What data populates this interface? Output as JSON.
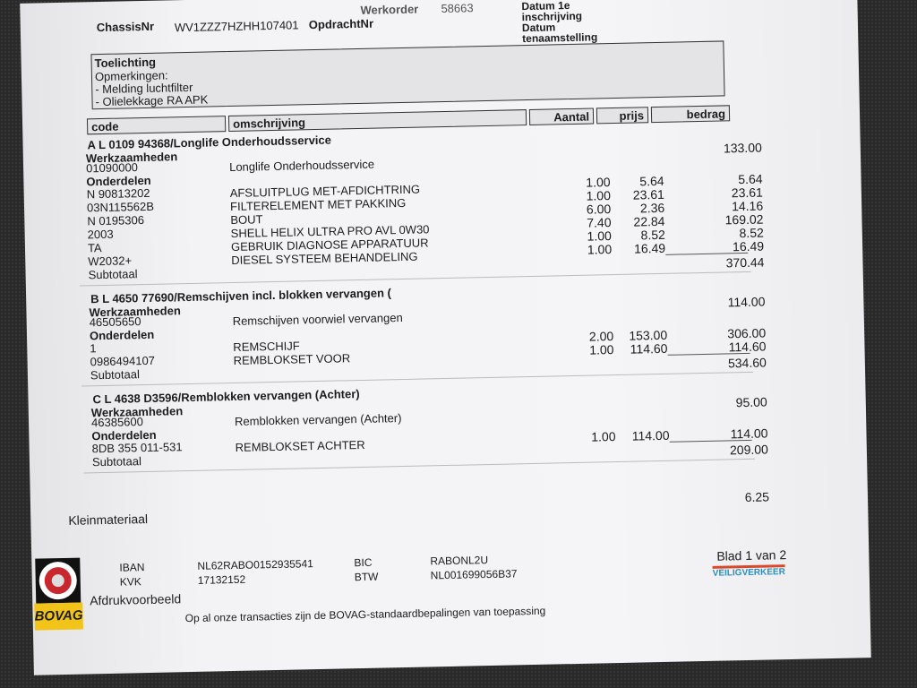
{
  "header": {
    "werkorder_label": "Werkorder",
    "werkorder_value": "58663",
    "chassis_label": "ChassisNr",
    "chassis_value": "WV1ZZZ7HZHH107401",
    "opdracht_label": "OpdrachtNr",
    "datum1_label": "Datum 1e",
    "datum1_label2": "inschrijving",
    "datum2_label": "Datum",
    "datum2_label2": "tenaamstelling"
  },
  "toelichting": {
    "title": "Toelichting",
    "lines": [
      "Opmerkingen:",
      "- Melding luchtfilter",
      "- Olielekkage RA APK"
    ]
  },
  "columns": {
    "code": "code",
    "omschrijving": "omschrijving",
    "aantal": "Aantal",
    "prijs": "prijs",
    "bedrag": "bedrag"
  },
  "sections": [
    {
      "title": "A L 0109 94368/Longlife Onderhoudsservice",
      "werk_label": "Werkzaamheden",
      "werk": {
        "code": "01090000",
        "desc": "Longlife Onderhoudsservice",
        "bedrag": "133.00"
      },
      "onderdelen_label": "Onderdelen",
      "parts": [
        {
          "code": "N 90813202",
          "desc": "AFSLUITPLUG MET-AFDICHTRING",
          "aantal": "1.00",
          "prijs": "5.64",
          "bedrag": "5.64"
        },
        {
          "code": "03N115562B",
          "desc": "FILTERELEMENT MET PAKKING",
          "aantal": "1.00",
          "prijs": "23.61",
          "bedrag": "23.61"
        },
        {
          "code": "N 0195306",
          "desc": "BOUT",
          "aantal": "6.00",
          "prijs": "2.36",
          "bedrag": "14.16"
        },
        {
          "code": "2003",
          "desc": "SHELL HELIX ULTRA PRO AVL 0W30",
          "aantal": "7.40",
          "prijs": "22.84",
          "bedrag": "169.02"
        },
        {
          "code": "TA",
          "desc": "GEBRUIK DIAGNOSE APPARATUUR",
          "aantal": "1.00",
          "prijs": "8.52",
          "bedrag": "8.52"
        },
        {
          "code": "W2032+",
          "desc": "DIESEL SYSTEEM BEHANDELING",
          "aantal": "1.00",
          "prijs": "16.49",
          "bedrag": "16.49"
        }
      ],
      "subtotaal_label": "Subtotaal",
      "subtotaal": "370.44"
    },
    {
      "title": "B L 4650 77690/Remschijven incl. blokken vervangen (",
      "werk_label": "Werkzaamheden",
      "werk": {
        "code": "46505650",
        "desc": "Remschijven voorwiel vervangen",
        "bedrag": "114.00"
      },
      "onderdelen_label": "Onderdelen",
      "parts": [
        {
          "code": "1",
          "desc": "REMSCHIJF",
          "aantal": "2.00",
          "prijs": "153.00",
          "bedrag": "306.00"
        },
        {
          "code": "0986494107",
          "desc": "REMBLOKSET VOOR",
          "aantal": "1.00",
          "prijs": "114.60",
          "bedrag": "114.60"
        }
      ],
      "subtotaal_label": "Subtotaal",
      "subtotaal": "534.60"
    },
    {
      "title": "C L 4638 D3596/Remblokken vervangen (Achter)",
      "werk_label": "Werkzaamheden",
      "werk": {
        "code": "46385600",
        "desc": "Remblokken vervangen (Achter)",
        "bedrag": "95.00"
      },
      "onderdelen_label": "Onderdelen",
      "parts": [
        {
          "code": "8DB 355 011-531",
          "desc": "REMBLOKSET ACHTER",
          "aantal": "1.00",
          "prijs": "114.00",
          "bedrag": "114.00"
        }
      ],
      "subtotaal_label": "Subtotaal",
      "subtotaal": "209.00"
    }
  ],
  "kleinmateriaal": {
    "label": "Kleinmateriaal",
    "bedrag": "6.25"
  },
  "footer": {
    "iban_label": "IBAN",
    "iban": "NL62RABO0152935541",
    "kvk_label": "KVK",
    "kvk": "17132152",
    "bic_label": "BIC",
    "bic": "RABONL2U",
    "btw_label": "BTW",
    "btw": "NL001699056B37",
    "watermark": "Afdrukvoorbeeld",
    "blad": "Blad 1 van 2",
    "terms": "Op al onze transacties zijn de BOVAG-standaardbepalingen van toepassing",
    "bovag": "BOVAG",
    "veilig": "VEILIGVERKEER"
  },
  "colors": {
    "bovag_yellow": "#f2c319",
    "bovag_red": "#c8282d",
    "veilig_blue": "#2a8fbf",
    "veilig_red": "#d94a2a"
  }
}
